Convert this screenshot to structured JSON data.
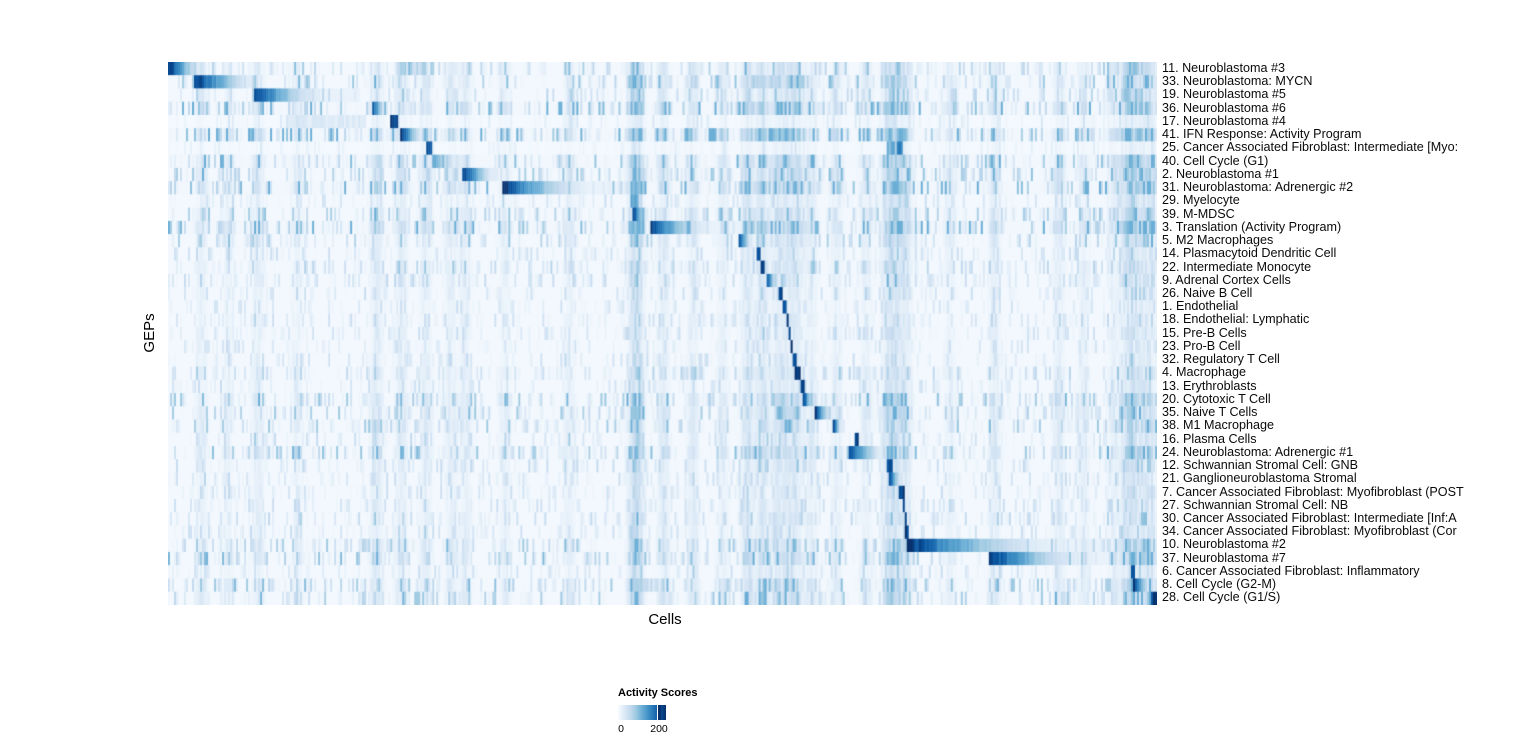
{
  "figure": {
    "y_axis_label": "GEPs",
    "x_axis_label": "Cells",
    "legend": {
      "title": "Activity Scores",
      "tick_min": "0",
      "tick_max": "200"
    },
    "colors": {
      "min": "#F7FBFF",
      "max": "#08306B",
      "palette": [
        "#F7FBFF",
        "#DEEBF7",
        "#C6DBEF",
        "#9ECAE1",
        "#6BAED6",
        "#4292C6",
        "#2171B5",
        "#08519C",
        "#08306B"
      ]
    }
  },
  "chart_data": {
    "type": "heatmap",
    "title": "",
    "xlabel": "Cells",
    "ylabel": "GEPs",
    "colorbar": {
      "label": "Activity Scores",
      "ticks": [
        0,
        200
      ],
      "colormap": "Blues",
      "value_scale_max": 240
    },
    "n_rows": 41,
    "description": "GEP activity scores per cell; cells (columns) ordered by assigned GEP, giving a diagonal of high-activity blocks. Block positions given as fractions of the x-axis.",
    "hot_columns": [
      [
        0.033,
        0.3
      ],
      [
        0.06,
        0.25
      ],
      [
        0.09,
        0.35
      ],
      [
        0.13,
        0.25
      ],
      [
        0.21,
        0.45
      ],
      [
        0.235,
        0.4
      ],
      [
        0.26,
        0.35
      ],
      [
        0.285,
        0.3
      ],
      [
        0.3,
        0.3
      ],
      [
        0.34,
        0.25
      ],
      [
        0.405,
        0.3
      ],
      [
        0.47,
        0.55
      ],
      [
        0.475,
        0.5
      ],
      [
        0.5,
        0.4
      ],
      [
        0.53,
        0.35
      ],
      [
        0.56,
        0.3
      ],
      [
        0.585,
        0.5
      ],
      [
        0.6,
        0.5
      ],
      [
        0.615,
        0.45
      ],
      [
        0.625,
        0.4
      ],
      [
        0.635,
        0.45
      ],
      [
        0.65,
        0.35
      ],
      [
        0.675,
        0.3
      ],
      [
        0.705,
        0.3
      ],
      [
        0.727,
        0.55
      ],
      [
        0.735,
        0.5
      ],
      [
        0.745,
        0.45
      ],
      [
        0.79,
        0.25
      ],
      [
        0.835,
        0.35
      ],
      [
        0.9,
        0.35
      ],
      [
        0.925,
        0.3
      ],
      [
        0.955,
        0.3
      ],
      [
        0.968,
        0.45
      ],
      [
        0.975,
        0.5
      ],
      [
        0.985,
        0.4
      ],
      [
        0.993,
        0.45
      ]
    ],
    "rows": [
      {
        "label": "11. Neuroblastoma #3",
        "block_start": 0.0,
        "block_end": 0.038,
        "peak": 1.0,
        "style": "fade",
        "noise": 0.45,
        "secondary": [
          [
            0.233,
            0.262,
            0.45
          ],
          [
            0.965,
            0.985,
            0.5
          ]
        ]
      },
      {
        "label": "33. Neuroblastoma: MYCN",
        "block_start": 0.026,
        "block_end": 0.092,
        "peak": 1.0,
        "style": "fade",
        "noise": 0.55,
        "secondary": [
          [
            0.585,
            0.645,
            0.35
          ]
        ]
      },
      {
        "label": "19. Neuroblastoma #5",
        "block_start": 0.088,
        "block_end": 0.194,
        "peak": 0.95,
        "style": "fadelong",
        "noise": 0.4,
        "secondary": [
          [
            0.963,
            0.985,
            0.45
          ]
        ]
      },
      {
        "label": "36. Neuroblastoma #6",
        "block_start": 0.206,
        "block_end": 0.222,
        "peak": 1.0,
        "style": "fade",
        "noise": 0.75,
        "secondary": []
      },
      {
        "label": "17. Neuroblastoma #4",
        "block_start": 0.224,
        "block_end": 0.233,
        "peak": 1.0,
        "style": "solid",
        "noise": 0.2,
        "secondary": [
          [
            0.12,
            0.2,
            0.18
          ]
        ]
      },
      {
        "label": "41. IFN Response: Activity Program",
        "block_start": 0.235,
        "block_end": 0.26,
        "peak": 1.0,
        "style": "fade",
        "noise": 0.8,
        "secondary": []
      },
      {
        "label": "25. Cancer Associated Fibroblast: Intermediate [Myo:",
        "block_start": 0.262,
        "block_end": 0.267,
        "peak": 1.0,
        "style": "solid",
        "noise": 0.15,
        "secondary": [
          [
            0.727,
            0.742,
            0.8
          ]
        ]
      },
      {
        "label": "40. Cell Cycle (G1)",
        "block_start": 0.268,
        "block_end": 0.295,
        "peak": 0.55,
        "style": "fade",
        "noise": 0.65,
        "secondary": []
      },
      {
        "label": "2. Neuroblastoma #1",
        "block_start": 0.297,
        "block_end": 0.334,
        "peak": 1.0,
        "style": "fade",
        "noise": 0.55,
        "secondary": [
          [
            0.963,
            0.985,
            0.4
          ]
        ]
      },
      {
        "label": "31. Neuroblastoma: Adrenergic #2",
        "block_start": 0.339,
        "block_end": 0.469,
        "peak": 1.0,
        "style": "fadelong",
        "noise": 0.7,
        "secondary": [
          [
            0.975,
            0.995,
            0.5
          ]
        ]
      },
      {
        "label": "29. Myelocyte",
        "block_start": 0.468,
        "block_end": 0.476,
        "peak": 0.6,
        "style": "solid",
        "noise": 0.3,
        "secondary": []
      },
      {
        "label": "39. M-MDSC",
        "block_start": 0.47,
        "block_end": 0.486,
        "peak": 1.0,
        "style": "fade",
        "noise": 0.5,
        "secondary": []
      },
      {
        "label": "3. Translation (Activity Program)",
        "block_start": 0.487,
        "block_end": 0.578,
        "peak": 1.0,
        "style": "fadelong",
        "noise": 0.75,
        "secondary": []
      },
      {
        "label": "5. M2 Macrophages",
        "block_start": 0.576,
        "block_end": 0.592,
        "peak": 1.0,
        "style": "fade",
        "noise": 0.45,
        "secondary": []
      },
      {
        "label": "14. Plasmacytoid Dendritic Cell",
        "block_start": 0.595,
        "block_end": 0.6,
        "peak": 1.0,
        "style": "solid",
        "noise": 0.3,
        "secondary": []
      },
      {
        "label": "22. Intermediate Monocyte",
        "block_start": 0.599,
        "block_end": 0.603,
        "peak": 1.0,
        "style": "solid",
        "noise": 0.4,
        "secondary": []
      },
      {
        "label": "9. Adrenal Cortex Cells",
        "block_start": 0.605,
        "block_end": 0.617,
        "peak": 0.95,
        "style": "fade",
        "noise": 0.35,
        "secondary": []
      },
      {
        "label": "26. Naive B Cell",
        "block_start": 0.618,
        "block_end": 0.622,
        "peak": 1.0,
        "style": "solid",
        "noise": 0.3,
        "secondary": []
      },
      {
        "label": "1. Endothelial",
        "block_start": 0.622,
        "block_end": 0.625,
        "peak": 1.0,
        "style": "solid",
        "noise": 0.25,
        "secondary": []
      },
      {
        "label": "18. Endothelial: Lymphatic",
        "block_start": 0.625,
        "block_end": 0.628,
        "peak": 1.0,
        "style": "solid",
        "noise": 0.3,
        "secondary": []
      },
      {
        "label": "15. Pre-B Cells",
        "block_start": 0.627,
        "block_end": 0.63,
        "peak": 1.0,
        "style": "solid",
        "noise": 0.3,
        "secondary": []
      },
      {
        "label": "23. Pro-B Cell",
        "block_start": 0.63,
        "block_end": 0.632,
        "peak": 1.0,
        "style": "solid",
        "noise": 0.25,
        "secondary": []
      },
      {
        "label": "32. Regulatory T Cell",
        "block_start": 0.632,
        "block_end": 0.635,
        "peak": 1.0,
        "style": "solid",
        "noise": 0.3,
        "secondary": []
      },
      {
        "label": "4. Macrophage",
        "block_start": 0.634,
        "block_end": 0.64,
        "peak": 1.0,
        "style": "solid",
        "noise": 0.4,
        "secondary": []
      },
      {
        "label": "13. Erythroblasts",
        "block_start": 0.64,
        "block_end": 0.643,
        "peak": 1.0,
        "style": "solid",
        "noise": 0.3,
        "secondary": []
      },
      {
        "label": "20. Cytotoxic T Cell",
        "block_start": 0.642,
        "block_end": 0.654,
        "peak": 1.0,
        "style": "fade",
        "noise": 0.55,
        "secondary": []
      },
      {
        "label": "35. Naive T Cells",
        "block_start": 0.654,
        "block_end": 0.672,
        "peak": 1.0,
        "style": "fade",
        "noise": 0.5,
        "secondary": [
          [
            0.615,
            0.64,
            0.45
          ]
        ]
      },
      {
        "label": "38. M1 Macrophage",
        "block_start": 0.672,
        "block_end": 0.682,
        "peak": 1.0,
        "style": "fade",
        "noise": 0.5,
        "secondary": []
      },
      {
        "label": "16. Plasma Cells",
        "block_start": 0.694,
        "block_end": 0.698,
        "peak": 1.0,
        "style": "solid",
        "noise": 0.35,
        "secondary": []
      },
      {
        "label": "24. Neuroblastoma: Adrenergic #1",
        "block_start": 0.688,
        "block_end": 0.727,
        "peak": 0.95,
        "style": "fade",
        "noise": 0.6,
        "secondary": []
      },
      {
        "label": "12. Schwannian Stromal Cell: GNB",
        "block_start": 0.727,
        "block_end": 0.733,
        "peak": 1.0,
        "style": "solid",
        "noise": 0.35,
        "secondary": []
      },
      {
        "label": "21. Ganglioneuroblastoma Stromal",
        "block_start": 0.729,
        "block_end": 0.742,
        "peak": 1.0,
        "style": "fade",
        "noise": 0.3,
        "secondary": []
      },
      {
        "label": "7. Cancer Associated Fibroblast: Myofibroblast (POST",
        "block_start": 0.738,
        "block_end": 0.744,
        "peak": 1.0,
        "style": "solid",
        "noise": 0.3,
        "secondary": []
      },
      {
        "label": "27. Schwannian Stromal Cell: NB",
        "block_start": 0.742,
        "block_end": 0.745,
        "peak": 1.0,
        "style": "solid",
        "noise": 0.3,
        "secondary": []
      },
      {
        "label": "30. Cancer Associated Fibroblast: Intermediate [Inf:A",
        "block_start": 0.744,
        "block_end": 0.747,
        "peak": 1.0,
        "style": "solid",
        "noise": 0.35,
        "secondary": []
      },
      {
        "label": "34. Cancer Associated Fibroblast: Myofibroblast (Cor",
        "block_start": 0.745,
        "block_end": 0.748,
        "peak": 1.0,
        "style": "solid",
        "noise": 0.3,
        "secondary": []
      },
      {
        "label": "10. Neuroblastoma #2",
        "block_start": 0.747,
        "block_end": 0.973,
        "peak": 1.0,
        "style": "fadelong",
        "noise": 0.5,
        "secondary": []
      },
      {
        "label": "37. Neuroblastoma #7",
        "block_start": 0.829,
        "block_end": 0.976,
        "peak": 1.0,
        "style": "fadelong",
        "noise": 0.6,
        "secondary": []
      },
      {
        "label": "6. Cancer Associated Fibroblast: Inflammatory",
        "block_start": 0.973,
        "block_end": 0.977,
        "peak": 1.0,
        "style": "solid",
        "noise": 0.3,
        "secondary": []
      },
      {
        "label": "8. Cell Cycle (G2-M)",
        "block_start": 0.976,
        "block_end": 0.995,
        "peak": 1.0,
        "style": "fade",
        "noise": 0.55,
        "secondary": [
          [
            0.47,
            0.5,
            0.3
          ]
        ]
      },
      {
        "label": "28. Cell Cycle (G1/S)",
        "block_start": 0.993,
        "block_end": 1.0,
        "peak": 1.0,
        "style": "solid",
        "noise": 0.5,
        "secondary": [
          [
            0.73,
            0.75,
            0.3
          ]
        ]
      }
    ]
  }
}
